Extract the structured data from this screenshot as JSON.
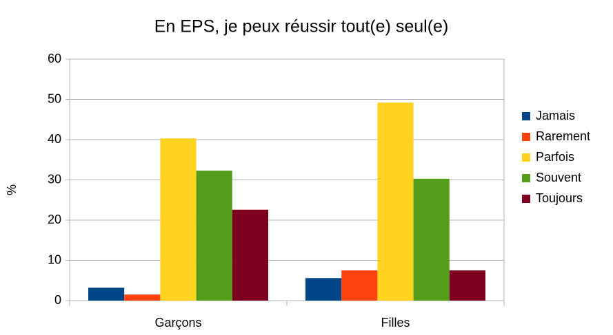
{
  "chart_data": {
    "type": "bar",
    "title": "En EPS, je peux réussir tout(e) seul(e)",
    "y_label": "%",
    "categories": [
      "Garçons",
      "Filles"
    ],
    "series": [
      {
        "name": "Jamais",
        "color": "#004586",
        "values": [
          3.2,
          5.6
        ]
      },
      {
        "name": "Rarement",
        "color": "#ff420e",
        "values": [
          1.5,
          7.5
        ]
      },
      {
        "name": "Parfois",
        "color": "#ffd320",
        "values": [
          40.3,
          49.2
        ]
      },
      {
        "name": "Souvent",
        "color": "#579d1c",
        "values": [
          32.3,
          30.3
        ]
      },
      {
        "name": "Toujours",
        "color": "#7e0021",
        "values": [
          22.6,
          7.5
        ]
      }
    ],
    "ylim": [
      0,
      60
    ],
    "yticks": [
      0,
      10,
      20,
      30,
      40,
      50,
      60
    ],
    "grid": true,
    "legend": "right"
  }
}
